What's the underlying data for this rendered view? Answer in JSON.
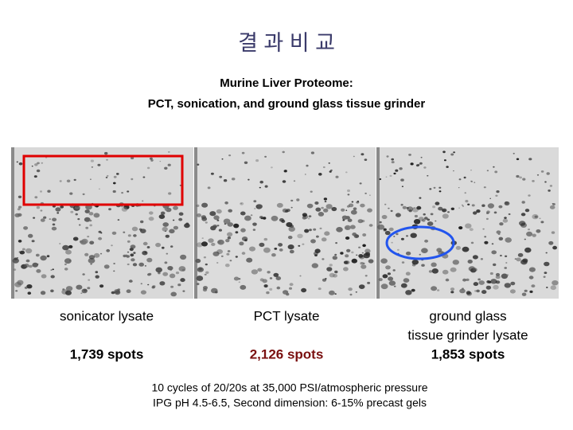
{
  "title": "결 과 비 교",
  "subtitle": [
    "Murine Liver Proteome:",
    "PCT, sonication, and ground glass tissue grinder"
  ],
  "panels": [
    {
      "label": [
        "sonicator lysate"
      ],
      "spots": "1,739 spots"
    },
    {
      "label": [
        "PCT lysate"
      ],
      "spots": "2,126 spots"
    },
    {
      "label": [
        "ground glass",
        "tissue grinder lysate"
      ],
      "spots": "1,853 spots"
    }
  ],
  "footer": [
    "10 cycles of 20/20s at 35,000 PSI/atmospheric pressure",
    "IPG pH 4.5-6.5, Second dimension: 6-15% precast gels"
  ]
}
